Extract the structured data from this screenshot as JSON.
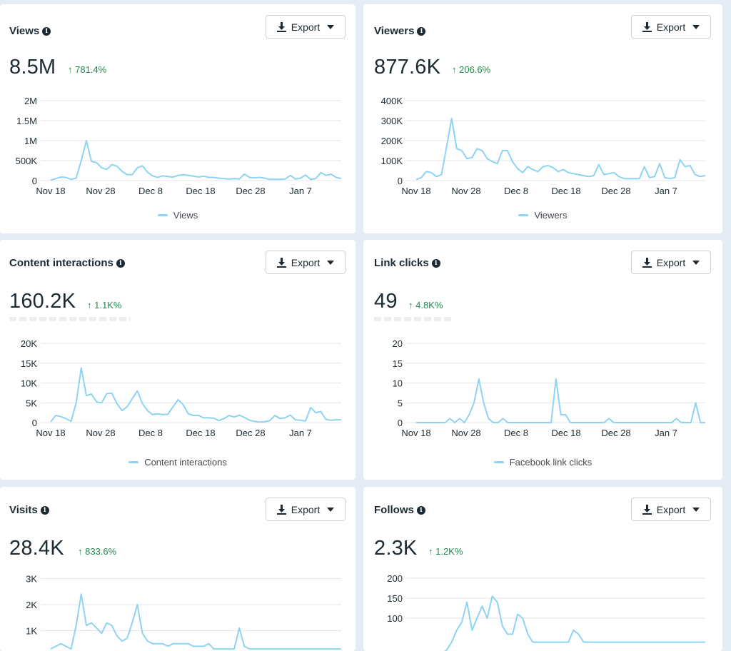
{
  "export_label": "Export",
  "theme": {
    "line_color": "#8fd3f2",
    "grid_color": "#e4e6eb",
    "positive_color": "#1f8a4c"
  },
  "cards": [
    {
      "id": "views",
      "title": "Views",
      "value": "8.5M",
      "change": "↑ 781.4%",
      "legend": "Views",
      "chart_data": {
        "type": "line",
        "x_ticks": [
          "Nov 18",
          "Nov 28",
          "Dec 8",
          "Dec 18",
          "Dec 28",
          "Jan 7"
        ],
        "y_ticks": [
          "0",
          "500K",
          "1M",
          "1.5M",
          "2M"
        ],
        "ylim": [
          0,
          2000000
        ],
        "series": [
          {
            "name": "Views",
            "values": [
              10000,
              50000,
              90000,
              80000,
              30000,
              60000,
              500000,
              1000000,
              480000,
              450000,
              320000,
              280000,
              400000,
              360000,
              230000,
              150000,
              150000,
              320000,
              370000,
              210000,
              120000,
              80000,
              120000,
              100000,
              90000,
              130000,
              150000,
              130000,
              110000,
              90000,
              110000,
              80000,
              80000,
              60000,
              50000,
              40000,
              50000,
              40000,
              160000,
              80000,
              70000,
              80000,
              60000,
              30000,
              30000,
              30000,
              40000,
              130000,
              40000,
              60000,
              140000,
              30000,
              50000,
              200000,
              130000,
              160000,
              80000,
              50000
            ]
          }
        ]
      }
    },
    {
      "id": "viewers",
      "title": "Viewers",
      "value": "877.6K",
      "change": "↑ 206.6%",
      "legend": "Viewers",
      "chart_data": {
        "type": "line",
        "x_ticks": [
          "Nov 18",
          "Nov 28",
          "Dec 8",
          "Dec 18",
          "Dec 28",
          "Jan 7"
        ],
        "y_ticks": [
          "0",
          "100K",
          "200K",
          "300K",
          "400K"
        ],
        "ylim": [
          0,
          400000
        ],
        "series": [
          {
            "name": "Viewers",
            "values": [
              5000,
              15000,
              45000,
              40000,
              20000,
              30000,
              170000,
              310000,
              160000,
              150000,
              110000,
              115000,
              160000,
              150000,
              110000,
              95000,
              85000,
              150000,
              150000,
              95000,
              60000,
              40000,
              70000,
              55000,
              45000,
              70000,
              75000,
              65000,
              45000,
              55000,
              40000,
              35000,
              30000,
              25000,
              20000,
              25000,
              80000,
              30000,
              35000,
              40000,
              20000,
              10000,
              10000,
              10000,
              10000,
              70000,
              15000,
              20000,
              85000,
              15000,
              10000,
              15000,
              105000,
              70000,
              75000,
              30000,
              20000,
              25000
            ]
          }
        ]
      }
    },
    {
      "id": "content-interactions",
      "title": "Content interactions",
      "value": "160.2K",
      "change": "↑ 1.1K%",
      "legend": "Content interactions",
      "chart_data": {
        "type": "line",
        "x_ticks": [
          "Nov 18",
          "Nov 28",
          "Dec 8",
          "Dec 18",
          "Dec 28",
          "Jan 7"
        ],
        "y_ticks": [
          "0",
          "5K",
          "10K",
          "15K",
          "20K"
        ],
        "ylim": [
          0,
          20000
        ],
        "series": [
          {
            "name": "Content interactions",
            "values": [
              200,
              1800,
              1500,
              1000,
              300,
              5000,
              13800,
              6800,
              7200,
              5200,
              5000,
              7300,
              7400,
              4800,
              3000,
              4000,
              6000,
              8000,
              4800,
              3000,
              2000,
              2200,
              2000,
              2100,
              4000,
              5800,
              4500,
              2200,
              1800,
              1800,
              1200,
              1200,
              1100,
              500,
              1000,
              1800,
              1400,
              1900,
              1300,
              600,
              300,
              100,
              200,
              500,
              1800,
              1000,
              1200,
              1900,
              700,
              600,
              400,
              3800,
              2500,
              2800,
              800,
              600,
              700,
              700
            ]
          }
        ]
      }
    },
    {
      "id": "link-clicks",
      "title": "Link clicks",
      "value": "49",
      "change": "↑ 4.8K%",
      "legend": "Facebook link clicks",
      "chart_data": {
        "type": "line",
        "x_ticks": [
          "Nov 18",
          "Nov 28",
          "Dec 8",
          "Dec 18",
          "Dec 28",
          "Jan 7"
        ],
        "y_ticks": [
          "0",
          "5",
          "10",
          "15",
          "20"
        ],
        "ylim": [
          0,
          20
        ],
        "series": [
          {
            "name": "Facebook link clicks",
            "values": [
              0,
              0,
              0,
              0,
              0,
              0,
              0,
              1,
              0,
              1,
              0,
              2,
              5,
              11,
              5,
              1,
              0,
              0,
              1,
              0,
              0,
              0,
              0,
              0,
              0,
              0,
              0,
              0,
              0,
              11,
              2,
              2,
              0,
              0,
              0,
              0,
              0,
              0,
              0,
              0,
              1,
              0,
              0,
              0,
              0,
              0,
              0,
              0,
              0,
              0,
              0,
              0,
              0,
              0,
              1,
              0,
              0,
              0,
              5,
              0,
              0
            ]
          }
        ]
      }
    },
    {
      "id": "visits",
      "title": "Visits",
      "value": "28.4K",
      "change": "↑ 833.6%",
      "legend": "",
      "chart_data": {
        "type": "line",
        "x_ticks": [],
        "y_ticks": [
          "1K",
          "2K",
          "3K"
        ],
        "ylim": [
          0,
          3000
        ],
        "series": [
          {
            "name": "",
            "values": [
              300,
              400,
              500,
              400,
              300,
              1200,
              2400,
              1200,
              1300,
              1100,
              900,
              1300,
              1200,
              800,
              600,
              700,
              1300,
              2000,
              900,
              600,
              500,
              500,
              500,
              400,
              500,
              500,
              500,
              500,
              400,
              400,
              400,
              500,
              300,
              300,
              300,
              300,
              300,
              1100,
              400,
              300,
              300,
              300,
              300,
              300,
              300,
              300,
              300,
              300,
              300,
              300,
              300,
              300,
              300,
              300,
              300,
              300,
              300,
              300
            ]
          }
        ]
      }
    },
    {
      "id": "follows",
      "title": "Follows",
      "value": "2.3K",
      "change": "↑ 1.2K%",
      "legend": "",
      "chart_data": {
        "type": "line",
        "x_ticks": [],
        "y_ticks": [
          "100",
          "150",
          "200"
        ],
        "ylim": [
          0,
          200
        ],
        "series": [
          {
            "name": "",
            "values": [
              10,
              10,
              10,
              10,
              10,
              10,
              20,
              40,
              70,
              90,
              140,
              70,
              100,
              130,
              100,
              155,
              140,
              80,
              60,
              60,
              110,
              100,
              60,
              40,
              40,
              40,
              40,
              40,
              40,
              40,
              40,
              70,
              60,
              40,
              40,
              40,
              40,
              40,
              40,
              40,
              40,
              40,
              40,
              40,
              40,
              40,
              40,
              40,
              40,
              40,
              40,
              40,
              40,
              40,
              40,
              40,
              40,
              40
            ]
          }
        ]
      }
    }
  ]
}
